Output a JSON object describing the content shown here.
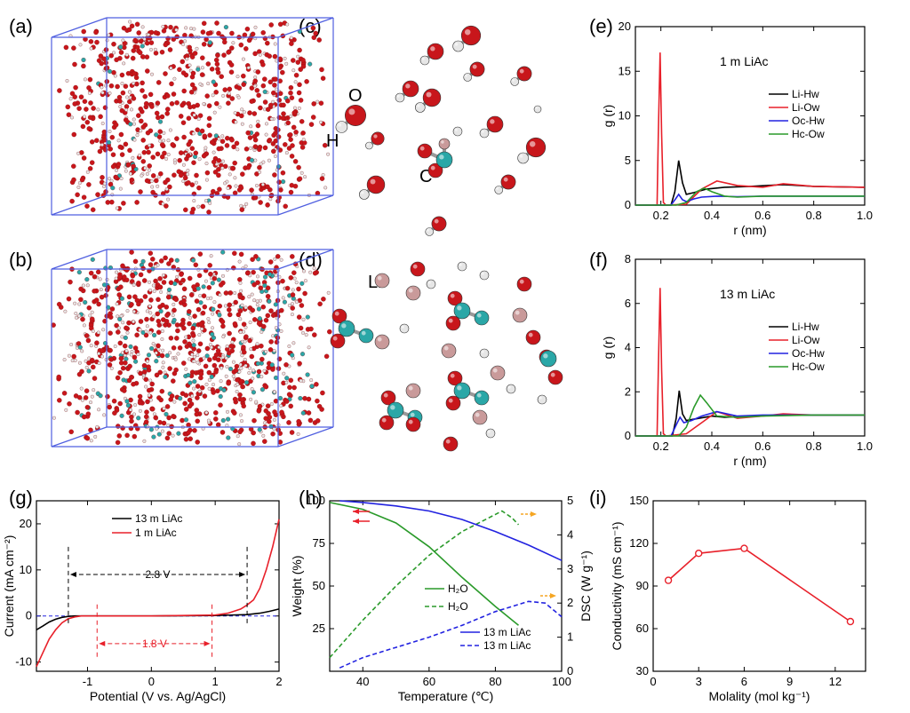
{
  "panels": {
    "a": "(a)",
    "b": "(b)",
    "c": "(c)",
    "d": "(d)",
    "e": "(e)",
    "f": "(f)",
    "g": "(g)",
    "h": "(h)",
    "i": "(i)"
  },
  "atoms": {
    "O": "O",
    "H": "H",
    "C": "C",
    "Li": "Li"
  },
  "colors": {
    "black": "#000000",
    "red": "#e8202a",
    "blue": "#2222e0",
    "green": "#2a9a2a",
    "orange": "#f5a623",
    "oxygen": "#c8161b",
    "carbon": "#2aa7a7",
    "hydrogen": "#e6e6e6",
    "lithium": "#c99a9a",
    "box": "#4f5fe0"
  },
  "chart_data": [
    {
      "id": "e",
      "type": "line",
      "title": "1 m LiAc",
      "xlabel": "r (nm)",
      "ylabel": "g (r)",
      "xlim": [
        0.1,
        1.0
      ],
      "ylim": [
        0,
        20
      ],
      "xticks": [
        0.2,
        0.4,
        0.6,
        0.8,
        1.0
      ],
      "xticklabels": [
        "0.2",
        "0.4",
        "0.6",
        "0.8",
        "1.0"
      ],
      "yticks": [
        0,
        5,
        10,
        15,
        20
      ],
      "yticklabels": [
        "0",
        "5",
        "10",
        "15",
        "20"
      ],
      "series": [
        {
          "name": "Li-Hw",
          "color": "#000000",
          "x": [
            0.1,
            0.24,
            0.255,
            0.27,
            0.285,
            0.3,
            0.33,
            0.38,
            0.45,
            0.55,
            0.68,
            0.8,
            1.0
          ],
          "y": [
            0,
            0,
            1.5,
            5.0,
            2.5,
            1.2,
            1.4,
            1.8,
            2.0,
            2.1,
            2.3,
            2.1,
            2.0
          ]
        },
        {
          "name": "Li-Ow",
          "color": "#e8202a",
          "x": [
            0.1,
            0.185,
            0.19,
            0.197,
            0.203,
            0.21,
            0.22,
            0.3,
            0.36,
            0.42,
            0.5,
            0.6,
            0.68,
            0.8,
            1.0
          ],
          "y": [
            0,
            0,
            8,
            17.1,
            8,
            0.3,
            0,
            0.1,
            1.8,
            2.7,
            2.2,
            2.0,
            2.4,
            2.1,
            2.0
          ]
        },
        {
          "name": "Oc-Hw",
          "color": "#2222e0",
          "x": [
            0.1,
            0.24,
            0.26,
            0.27,
            0.285,
            0.3,
            0.33,
            0.36,
            0.42,
            0.5,
            0.6,
            0.8,
            1.0
          ],
          "y": [
            0,
            0,
            0.8,
            1.2,
            0.6,
            0.4,
            0.7,
            0.9,
            1.0,
            0.95,
            1.0,
            1.0,
            1.0
          ]
        },
        {
          "name": "Hc-Ow",
          "color": "#2a9a2a",
          "x": [
            0.1,
            0.26,
            0.3,
            0.34,
            0.37,
            0.4,
            0.45,
            0.5,
            0.6,
            0.8,
            1.0
          ],
          "y": [
            0,
            0,
            0.3,
            1.5,
            1.9,
            1.5,
            1.0,
            0.9,
            1.0,
            1.0,
            1.0
          ]
        }
      ]
    },
    {
      "id": "f",
      "type": "line",
      "title": "13 m LiAc",
      "xlabel": "r (nm)",
      "ylabel": "g (r)",
      "xlim": [
        0.1,
        1.0
      ],
      "ylim": [
        0,
        8
      ],
      "xticks": [
        0.2,
        0.4,
        0.6,
        0.8,
        1.0
      ],
      "xticklabels": [
        "0.2",
        "0.4",
        "0.6",
        "0.8",
        "1.0"
      ],
      "yticks": [
        0,
        2,
        4,
        6,
        8
      ],
      "yticklabels": [
        "0",
        "2",
        "4",
        "6",
        "8"
      ],
      "series": [
        {
          "name": "Li-Hw",
          "color": "#000000",
          "x": [
            0.1,
            0.245,
            0.26,
            0.272,
            0.285,
            0.3,
            0.35,
            0.4,
            0.45,
            0.55,
            0.7,
            1.0
          ],
          "y": [
            0,
            0,
            0.8,
            2.05,
            1.0,
            0.7,
            0.8,
            0.9,
            0.85,
            0.9,
            0.95,
            0.95
          ]
        },
        {
          "name": "Li-Ow",
          "color": "#e8202a",
          "x": [
            0.1,
            0.185,
            0.19,
            0.197,
            0.203,
            0.21,
            0.22,
            0.3,
            0.36,
            0.42,
            0.5,
            0.6,
            0.68,
            0.8,
            1.0
          ],
          "y": [
            0,
            0,
            3,
            6.7,
            3,
            0.1,
            0,
            0.1,
            0.6,
            1.1,
            0.8,
            0.9,
            1.0,
            0.95,
            0.95
          ]
        },
        {
          "name": "Oc-Hw",
          "color": "#2222e0",
          "x": [
            0.1,
            0.24,
            0.26,
            0.275,
            0.29,
            0.32,
            0.36,
            0.42,
            0.5,
            0.6,
            0.8,
            1.0
          ],
          "y": [
            0,
            0,
            0.5,
            0.85,
            0.6,
            0.7,
            0.9,
            1.1,
            0.9,
            0.95,
            0.95,
            0.95
          ]
        },
        {
          "name": "Hc-Ow",
          "color": "#2a9a2a",
          "x": [
            0.1,
            0.27,
            0.3,
            0.33,
            0.355,
            0.38,
            0.42,
            0.5,
            0.6,
            0.8,
            1.0
          ],
          "y": [
            0,
            0,
            0.4,
            1.3,
            1.85,
            1.5,
            0.9,
            0.85,
            0.9,
            0.95,
            0.95
          ]
        }
      ]
    },
    {
      "id": "g",
      "type": "line",
      "xlabel": "Potential (V vs. Ag/AgCl)",
      "ylabel": "Current (mA cm⁻²)",
      "xlim": [
        -1.8,
        2.0
      ],
      "ylim": [
        -12,
        25
      ],
      "xticks": [
        -1,
        0,
        1,
        2
      ],
      "xticklabels": [
        "-1",
        "0",
        "1",
        "2"
      ],
      "yticks": [
        -10,
        0,
        10,
        20
      ],
      "yticklabels": [
        "-10",
        "0",
        "10",
        "20"
      ],
      "series": [
        {
          "name": "13 m LiAc",
          "color": "#000000",
          "x": [
            -1.8,
            -1.7,
            -1.6,
            -1.5,
            -1.4,
            -1.3,
            -1.2,
            0,
            1,
            1.5,
            1.7,
            1.85,
            2.0
          ],
          "y": [
            -3,
            -2.2,
            -1.3,
            -0.7,
            -0.3,
            -0.1,
            0,
            0,
            0.1,
            0.3,
            0.6,
            1.0,
            1.5
          ]
        },
        {
          "name": "1 m LiAc",
          "color": "#e8202a",
          "x": [
            -1.8,
            -1.7,
            -1.6,
            -1.5,
            -1.4,
            -1.3,
            -1.2,
            -1.1,
            0,
            1.0,
            1.2,
            1.4,
            1.5,
            1.6,
            1.7,
            1.8,
            1.9,
            2.0
          ],
          "y": [
            -11,
            -8,
            -5,
            -3,
            -1.5,
            -0.6,
            -0.2,
            0,
            0,
            0.2,
            0.6,
            1.5,
            2.4,
            3.5,
            6,
            10,
            15,
            21
          ]
        }
      ],
      "annotations": {
        "window_13m": "2.8 V",
        "window_1m": "1.8 V"
      }
    },
    {
      "id": "h",
      "type": "line",
      "xlabel": "Temperature (℃)",
      "ylabel": "Weight (%)",
      "y2label": "DSC (W g⁻¹)",
      "xlim": [
        30,
        100
      ],
      "ylim": [
        0,
        100
      ],
      "y2lim": [
        0,
        5
      ],
      "xticks": [
        40,
        60,
        80,
        100
      ],
      "xticklabels": [
        "40",
        "60",
        "80",
        "100"
      ],
      "yticks": [
        25,
        50,
        75,
        100
      ],
      "yticklabels": [
        "25",
        "50",
        "75",
        "100"
      ],
      "y2ticks": [
        0,
        1,
        2,
        3,
        4,
        5
      ],
      "y2ticklabels": [
        "0",
        "1",
        "2",
        "3",
        "4",
        "5"
      ],
      "series": [
        {
          "name": "H₂O",
          "axis": "left",
          "style": "solid",
          "color": "#2a9a2a",
          "x": [
            30,
            40,
            50,
            60,
            70,
            80,
            87
          ],
          "y": [
            99,
            95,
            87,
            73,
            55,
            38,
            27
          ]
        },
        {
          "name": "H₂O",
          "axis": "right",
          "style": "dashed",
          "color": "#2a9a2a",
          "x": [
            30,
            40,
            50,
            60,
            70,
            80,
            82,
            85,
            87
          ],
          "y": [
            0.4,
            1.5,
            2.5,
            3.4,
            4.1,
            4.6,
            4.7,
            4.5,
            4.3
          ]
        },
        {
          "name": "13 m LiAc",
          "axis": "left",
          "style": "solid",
          "color": "#2222e0",
          "x": [
            33,
            40,
            50,
            60,
            70,
            80,
            90,
            100
          ],
          "y": [
            100,
            99,
            97,
            94,
            89,
            82,
            74,
            65
          ]
        },
        {
          "name": "13 m LiAc",
          "axis": "right",
          "style": "dashed",
          "color": "#2222e0",
          "x": [
            33,
            40,
            50,
            60,
            70,
            80,
            90,
            95,
            100
          ],
          "y": [
            0.1,
            0.4,
            0.7,
            1.0,
            1.35,
            1.75,
            2.05,
            2.0,
            1.6
          ]
        }
      ]
    },
    {
      "id": "i",
      "type": "line",
      "xlabel": "Molality (mol kg⁻¹)",
      "ylabel": "Conductivity (mS cm⁻¹)",
      "xlim": [
        0,
        14
      ],
      "ylim": [
        30,
        150
      ],
      "xticks": [
        0,
        3,
        6,
        9,
        12
      ],
      "xticklabels": [
        "0",
        "3",
        "6",
        "9",
        "12"
      ],
      "yticks": [
        30,
        60,
        90,
        120,
        150
      ],
      "yticklabels": [
        "30",
        "60",
        "90",
        "120",
        "150"
      ],
      "series": [
        {
          "name": "Conductivity",
          "color": "#e8202a",
          "x": [
            1,
            3,
            6,
            13
          ],
          "y": [
            94,
            113,
            116.5,
            65
          ]
        }
      ]
    }
  ]
}
